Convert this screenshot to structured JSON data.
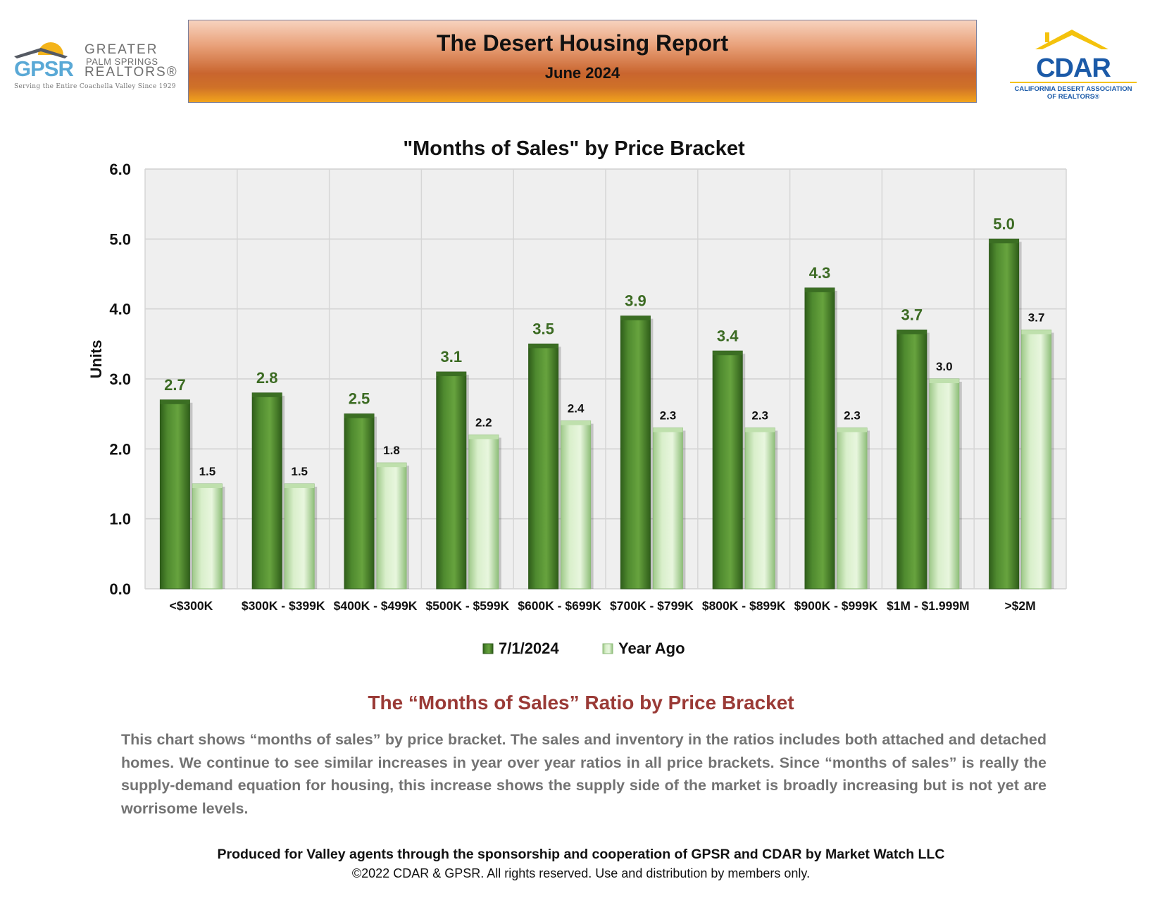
{
  "header": {
    "title": "The Desert Housing Report",
    "date": "June 2024",
    "left_logo": {
      "letters": "GPSR",
      "word1": "GREATER",
      "word2": "PALM SPRINGS",
      "word3": "REALTORS®",
      "tagline": "Serving the Entire Coachella Valley Since 1929",
      "colors": {
        "sun": "#f4b41a",
        "roof": "#555a63",
        "letters": "#5aa9d6"
      }
    },
    "right_logo": {
      "name": "CDAR",
      "line1": "CALIFORNIA DESERT ASSOCIATION",
      "line2": "OF REALTORS®",
      "colors": {
        "roof": "#f4c20d",
        "text": "#1b5aa8",
        "underline": "#f4c20d"
      }
    }
  },
  "chart_data": {
    "type": "bar",
    "title": "\"Months of Sales\" by Price Bracket",
    "ylabel": "Units",
    "xlabel": "",
    "ylim": [
      0,
      6
    ],
    "yticks": [
      "0.0",
      "1.0",
      "2.0",
      "3.0",
      "4.0",
      "5.0",
      "6.0"
    ],
    "grid": true,
    "legend_position": "bottom",
    "categories": [
      "<$300K",
      "$300K - $399K",
      "$400K - $499K",
      "$500K - $599K",
      "$600K - $699K",
      "$700K - $799K",
      "$800K - $899K",
      "$900K - $999K",
      "$1M - $1.999M",
      ">$2M"
    ],
    "series": [
      {
        "name": "7/1/2024",
        "color": "#4f8a2f",
        "label_color": "#3c6b23",
        "values": [
          2.7,
          2.8,
          2.5,
          3.1,
          3.5,
          3.9,
          3.4,
          4.3,
          3.7,
          5.0
        ],
        "labels": [
          "2.7",
          "2.8",
          "2.5",
          "3.1",
          "3.5",
          "3.9",
          "3.4",
          "4.3",
          "3.7",
          "5.0"
        ]
      },
      {
        "name": "Year Ago",
        "color": "#cfe8bf",
        "label_color": "#111111",
        "values": [
          1.5,
          1.5,
          1.8,
          2.2,
          2.4,
          2.3,
          2.3,
          2.3,
          3.0,
          3.7
        ],
        "labels": [
          "1.5",
          "1.5",
          "1.8",
          "2.2",
          "2.4",
          "2.3",
          "2.3",
          "2.3",
          "3.0",
          "3.7"
        ]
      }
    ]
  },
  "section": {
    "title": "The “Months of Sales” Ratio by Price Bracket",
    "body": "This chart shows “months of sales” by price bracket. The sales and inventory in the ratios includes both attached and detached homes. We continue to see similar increases in year over year ratios in all price brackets. Since “months of sales” is really the supply-demand equation for housing, this increase shows the supply side of the market is broadly increasing but is not yet are worrisome levels."
  },
  "footer": {
    "line1": "Produced for Valley agents through the sponsorship and cooperation of GPSR and CDAR by Market Watch LLC",
    "line2": "©2022 CDAR & GPSR.  All rights reserved.  Use and distribution by members only."
  }
}
